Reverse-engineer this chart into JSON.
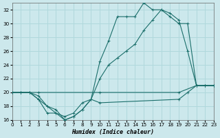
{
  "xlabel": "Humidex (Indice chaleur)",
  "bg_color": "#cce8ec",
  "grid_color": "#b0d8dc",
  "line_color": "#1a6e6a",
  "xlim": [
    0,
    23
  ],
  "ylim": [
    16,
    33
  ],
  "xticks": [
    0,
    1,
    2,
    3,
    4,
    5,
    6,
    7,
    8,
    9,
    10,
    11,
    12,
    13,
    14,
    15,
    16,
    17,
    18,
    19,
    20,
    21,
    22,
    23
  ],
  "yticks": [
    16,
    18,
    20,
    22,
    24,
    26,
    28,
    30,
    32
  ],
  "curve1_x": [
    0,
    1,
    2,
    3,
    4,
    5,
    6,
    7,
    8,
    9,
    10,
    11,
    12,
    13,
    14,
    15,
    16,
    17,
    18,
    19,
    20,
    21,
    22,
    23
  ],
  "curve1_y": [
    20,
    20,
    20,
    19,
    17,
    17,
    16.5,
    17,
    18.5,
    19,
    24.5,
    27.5,
    31,
    31,
    31,
    33,
    32,
    32,
    31,
    30,
    30,
    21,
    21,
    21
  ],
  "curve2_x": [
    0,
    1,
    2,
    3,
    4,
    5,
    6,
    7,
    8,
    9,
    10,
    11,
    12,
    13,
    14,
    15,
    16,
    17,
    18,
    19,
    20,
    21,
    22,
    23
  ],
  "curve2_y": [
    20,
    20,
    20,
    19.5,
    18,
    17.5,
    16,
    16.5,
    17.5,
    19,
    22,
    24,
    25,
    26,
    27,
    29,
    30.5,
    32,
    31.5,
    30.5,
    26,
    21,
    21,
    21
  ],
  "curve3_x": [
    0,
    1,
    2,
    3,
    10,
    19,
    21,
    22,
    23
  ],
  "curve3_y": [
    20,
    20,
    20,
    20,
    20,
    20,
    21,
    21,
    21
  ],
  "curve4_x": [
    0,
    2,
    3,
    4,
    5,
    6,
    7,
    8,
    9,
    10,
    19,
    20,
    21,
    22,
    23
  ],
  "curve4_y": [
    20,
    20,
    19,
    18,
    17,
    16,
    16.5,
    17.5,
    19,
    18.5,
    19,
    20,
    21,
    21,
    21
  ]
}
